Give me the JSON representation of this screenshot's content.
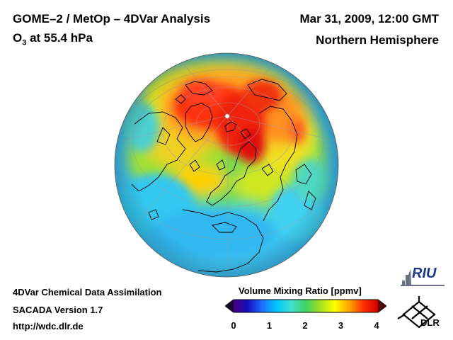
{
  "header": {
    "title": "GOME–2 / MetOp – 4DVar Analysis",
    "species": "O",
    "species_sub": "3",
    "level": " at 55.4 hPa",
    "datetime": "Mar 31, 2009, 12:00 GMT",
    "region": "Northern Hemisphere"
  },
  "footer": {
    "line1": "4DVar Chemical Data Assimilation",
    "line2": "SACADA Version 1.7",
    "line3": "http://wdc.dlr.de"
  },
  "colorbar": {
    "title": "Volume Mixing Ratio [ppmv]",
    "ticks": [
      "0",
      "1",
      "2",
      "3",
      "4"
    ],
    "min": 0,
    "max": 4,
    "colors": [
      "#1a0030",
      "#4b0082",
      "#1010c0",
      "#1f6fff",
      "#00c8ff",
      "#40e0d0",
      "#40d060",
      "#a0e020",
      "#ffff00",
      "#ffa500",
      "#ff3000",
      "#d00000",
      "#5a0000"
    ]
  },
  "logos": {
    "riu": "RIU",
    "dlr": "DLR"
  },
  "map": {
    "projection": "orthographic",
    "field": "ozone"
  }
}
